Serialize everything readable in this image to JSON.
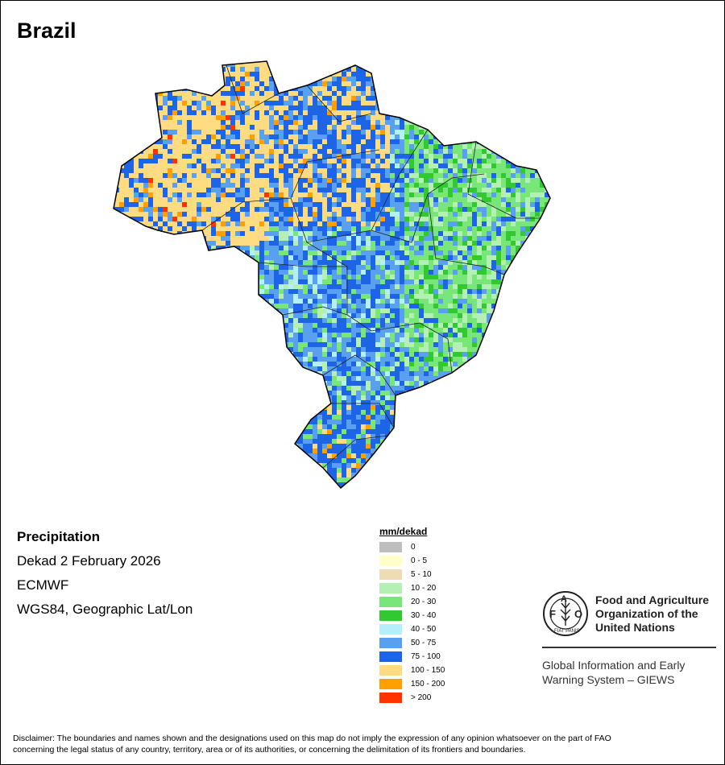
{
  "map": {
    "title": "Brazil",
    "product": "Precipitation",
    "period": "Dekad 2 February 2026",
    "source": "ECMWF",
    "projection": "WGS84, Geographic Lat/Lon"
  },
  "legend": {
    "title": "mm/dekad",
    "classes": [
      {
        "label": "0",
        "color": "#bebebe"
      },
      {
        "label": "0 - 5",
        "color": "#ffffc8"
      },
      {
        "label": "5 - 10",
        "color": "#f0dcb4"
      },
      {
        "label": "10 - 20",
        "color": "#b4f0b4"
      },
      {
        "label": "20 - 30",
        "color": "#78e678"
      },
      {
        "label": "30 - 40",
        "color": "#32c832"
      },
      {
        "label": "40 - 50",
        "color": "#b4f0fa"
      },
      {
        "label": "50 - 75",
        "color": "#5aa0f0"
      },
      {
        "label": "75 - 100",
        "color": "#1e64e6"
      },
      {
        "label": "100 - 150",
        "color": "#ffdc82"
      },
      {
        "label": "150 - 200",
        "color": "#ffa000"
      },
      {
        "label": "> 200",
        "color": "#ff3200"
      }
    ]
  },
  "logo": {
    "org_line1": "Food and Agriculture",
    "org_line2": "Organization of the",
    "org_line3": "United Nations",
    "emblem_text": "FAO",
    "emblem_motto": "FIAT PANIS",
    "system_line1": "Global Information and Early",
    "system_line2": "Warning System – GIEWS"
  },
  "disclaimer": {
    "line1": "Disclaimer: The boundaries and names shown and the designations used on this map do not imply the expression of any opinion whatsoever on the part of FAO",
    "line2": "concerning the legal status of any country, territory, area or of its authorities, or concerning the delimitation of its frontiers and boundaries."
  }
}
